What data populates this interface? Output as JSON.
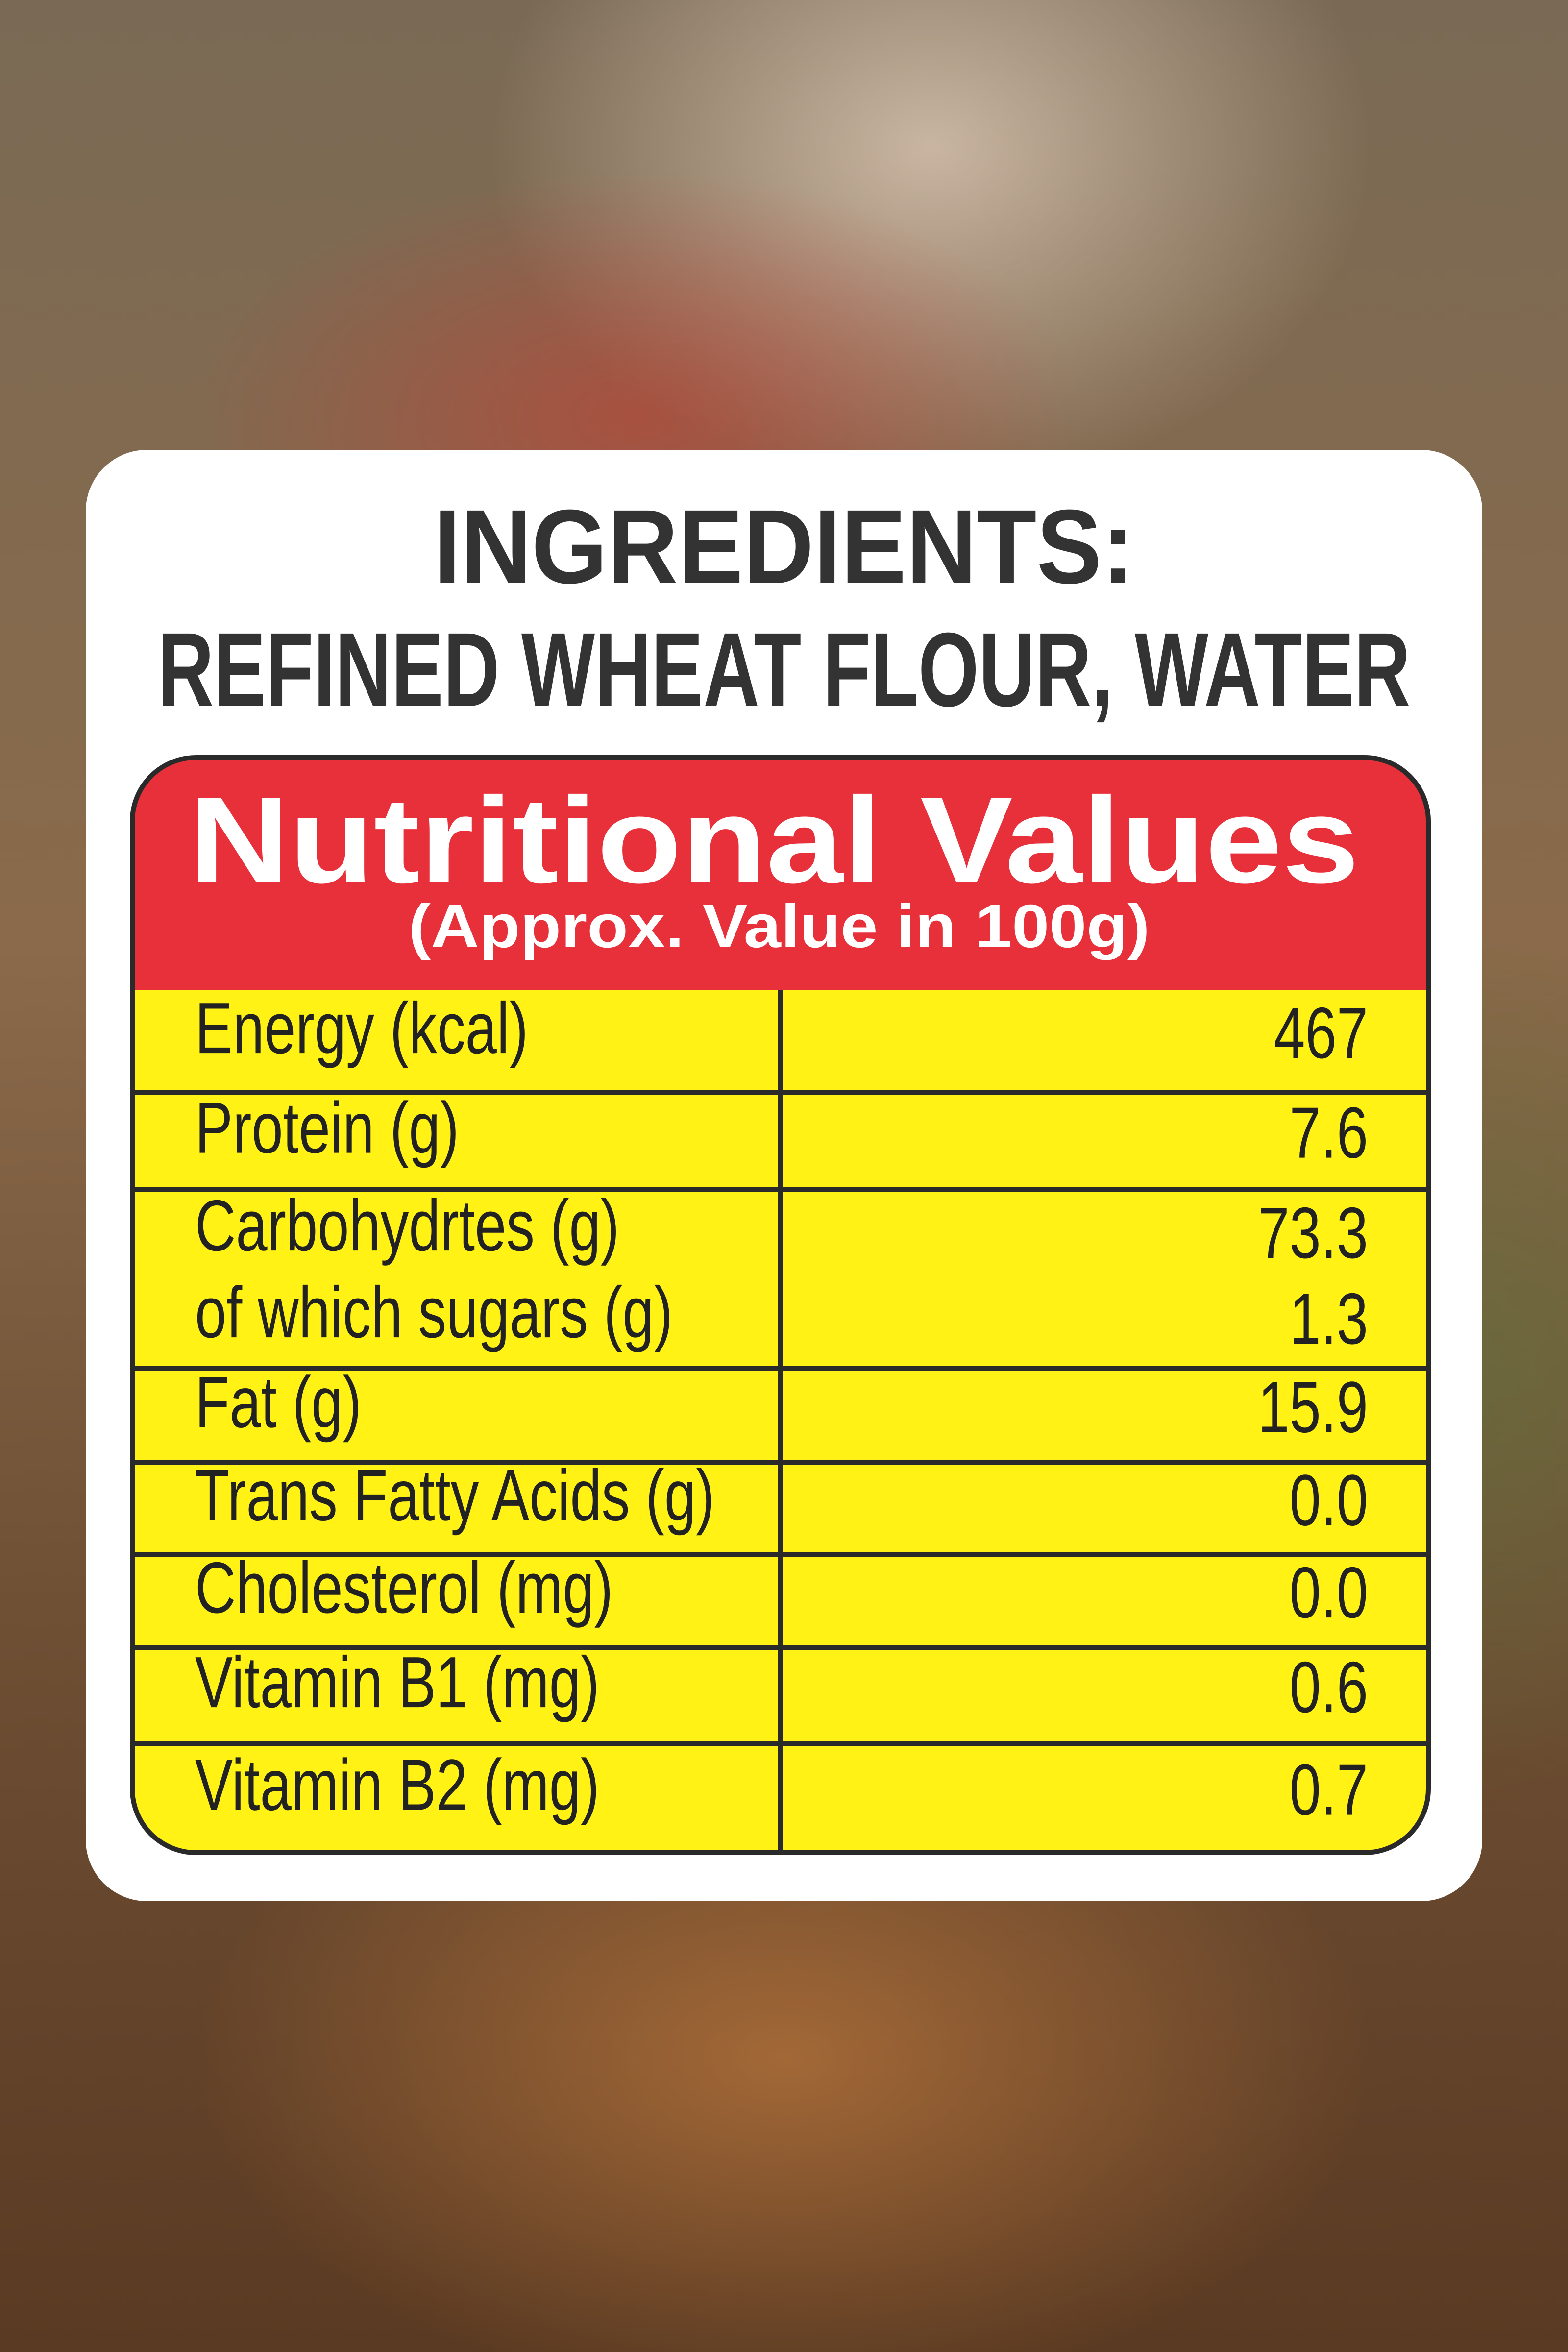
{
  "ingredients": {
    "title": "INGREDIENTS:",
    "text": "REFINED WHEAT FLOUR, WATER"
  },
  "table": {
    "title": "Nutritional Values",
    "subtitle": "(Approx. Value in 100g)",
    "rows": [
      {
        "label": "Energy (kcal)",
        "value": "467"
      },
      {
        "label": "Protein (g)",
        "value": "7.6"
      },
      {
        "label": "Carbohydrtes (g)",
        "value": "73.3",
        "sub_label": "of which sugars (g)",
        "sub_value": "1.3"
      },
      {
        "label": "Fat (g)",
        "value": "15.9"
      },
      {
        "label": "Trans Fatty Acids (g)",
        "value": "0.0"
      },
      {
        "label": "Cholesterol (mg)",
        "value": "0.0"
      },
      {
        "label": "Vitamin B1 (mg)",
        "value": "0.6"
      },
      {
        "label": "Vitamin B2 (mg)",
        "value": "0.7"
      }
    ]
  }
}
